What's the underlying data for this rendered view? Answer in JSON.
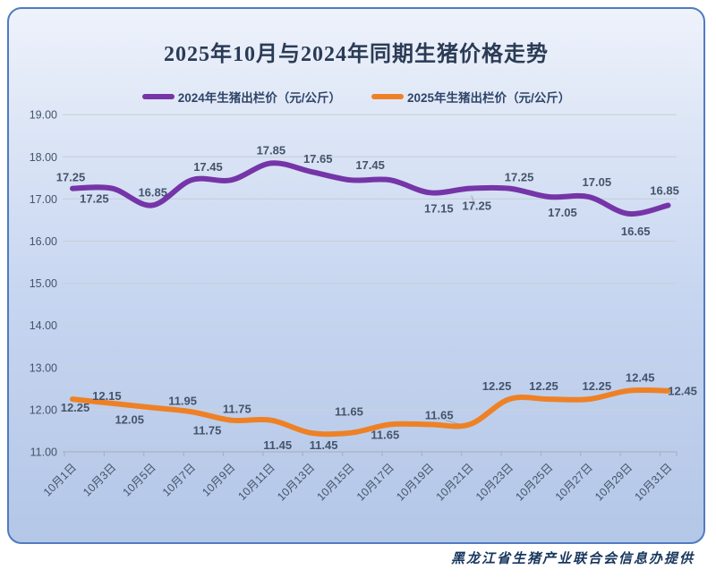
{
  "title": "2025年10月与2024年同期生猪价格走势",
  "footer": "黑龙江省生猪产业联合会信息办提供",
  "colors": {
    "series_2024": "#7535A8",
    "series_2025": "#EE8125",
    "axis_text": "#44546A",
    "gridline": "#c9d0dd",
    "axis_line": "#a9b3c2",
    "title_text": "#2b3b55",
    "card_border": "#4f7cc0"
  },
  "chart_data": {
    "type": "line",
    "smoothed": true,
    "title": "2025年10月与2024年同期生猪价格走势",
    "xlabel": "",
    "ylabel": "",
    "ylim": [
      11,
      19
    ],
    "ytick_step": 1,
    "ytick_labels": [
      "19.00",
      "18.00",
      "17.00",
      "16.00",
      "15.00",
      "14.00",
      "13.00",
      "12.00",
      "11.00"
    ],
    "grid": true,
    "legend_position": "top",
    "categories": [
      "10月1日",
      "10月3日",
      "10月5日",
      "10月7日",
      "10月9日",
      "10月11日",
      "10月13日",
      "10月15日",
      "10月17日",
      "10月19日",
      "10月21日",
      "10月23日",
      "10月25日",
      "10月27日",
      "10月29日",
      "10月31日"
    ],
    "series": [
      {
        "name": "2024年生猪出栏价（元/公斤）",
        "color": "#7535A8",
        "values": [
          17.25,
          17.25,
          16.85,
          17.45,
          17.45,
          17.85,
          17.65,
          17.45,
          17.45,
          17.15,
          17.25,
          17.25,
          17.05,
          17.05,
          16.65,
          16.85
        ],
        "labels": [
          {
            "v": "17.25",
            "dx": -2,
            "dy": -8
          },
          {
            "v": "17.25",
            "dx": -20,
            "dy": 16
          },
          {
            "v": "16.85",
            "dx": 1,
            "dy": -10
          },
          null,
          {
            "v": "17.45",
            "dx": -26,
            "dy": -10
          },
          {
            "v": "17.85",
            "dx": 0,
            "dy": -10
          },
          {
            "v": "17.65",
            "dx": 8,
            "dy": -10
          },
          {
            "v": "17.45",
            "dx": 22,
            "dy": -12
          },
          null,
          {
            "v": "17.15",
            "dx": 10,
            "dy": 22
          },
          {
            "v": "17.25",
            "dx": 8,
            "dy": 24,
            "leader": true
          },
          {
            "v": "17.25",
            "dx": 11,
            "dy": -8
          },
          {
            "v": "17.05",
            "dx": 15,
            "dy": 22
          },
          {
            "v": "17.05",
            "dx": 9,
            "dy": -12
          },
          {
            "v": "16.65",
            "dx": 8,
            "dy": 24
          },
          {
            "v": "16.85",
            "dx": -4,
            "dy": -12
          }
        ]
      },
      {
        "name": "2025年生猪出栏价（元/公斤）",
        "color": "#EE8125",
        "values": [
          12.25,
          12.15,
          12.05,
          11.95,
          11.75,
          11.75,
          11.45,
          11.45,
          11.65,
          11.65,
          11.65,
          12.25,
          12.25,
          12.25,
          12.45,
          12.45
        ],
        "labels": [
          {
            "v": "12.25",
            "dx": 3,
            "dy": 14
          },
          {
            "v": "12.15",
            "dx": -6,
            "dy": -4
          },
          {
            "v": "12.05",
            "dx": -25,
            "dy": 18
          },
          {
            "v": "11.95",
            "dx": -10,
            "dy": -8
          },
          {
            "v": "11.75",
            "dx": -27,
            "dy": 16
          },
          {
            "v": "11.75",
            "dx": -38,
            "dy": -8
          },
          {
            "v": "11.45",
            "dx": -37,
            "dy": 18
          },
          {
            "v": "11.45",
            "dx": -30,
            "dy": 18
          },
          {
            "v": "11.65",
            "dx": -46,
            "dy": -10
          },
          {
            "v": "11.65",
            "dx": -50,
            "dy": 16
          },
          {
            "v": "11.65",
            "dx": -34,
            "dy": -6,
            "leader": true
          },
          {
            "v": "12.25",
            "dx": -14,
            "dy": -10
          },
          {
            "v": "12.25",
            "dx": -6,
            "dy": -10
          },
          {
            "v": "12.25",
            "dx": 9,
            "dy": -10
          },
          {
            "v": "12.45",
            "dx": 13,
            "dy": -10
          },
          {
            "v": "12.45",
            "dx": 16,
            "dy": 5
          }
        ]
      }
    ]
  }
}
